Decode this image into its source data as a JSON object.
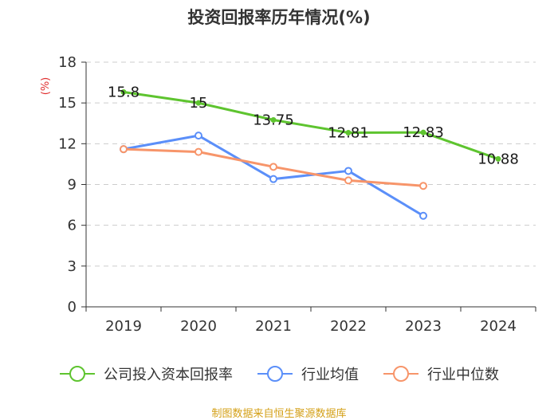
{
  "chart_data": {
    "type": "line",
    "title": "投资回报率历年情况(%)",
    "ylabel": "(%)",
    "xlabel": "",
    "ylim": [
      0,
      18
    ],
    "yticks": [
      0,
      3,
      6,
      9,
      12,
      15,
      18
    ],
    "categories": [
      "2019",
      "2020",
      "2021",
      "2022",
      "2023",
      "2024"
    ],
    "series": [
      {
        "name": "公司投入资本回报率",
        "color": "#5ec42f",
        "values": [
          15.8,
          15,
          13.75,
          12.81,
          12.83,
          10.88
        ],
        "labels": [
          "15.8",
          "15",
          "13.75",
          "12.81",
          "12.83",
          "10.88"
        ]
      },
      {
        "name": "行业均值",
        "color": "#5b8ff9",
        "values": [
          11.6,
          12.6,
          9.4,
          10.0,
          6.7,
          null
        ]
      },
      {
        "name": "行业中位数",
        "color": "#f7956a",
        "values": [
          11.6,
          11.4,
          10.3,
          9.3,
          8.9,
          null
        ]
      }
    ],
    "grid": true,
    "legend_position": "bottom"
  },
  "source": "制图数据来自恒生聚源数据库"
}
